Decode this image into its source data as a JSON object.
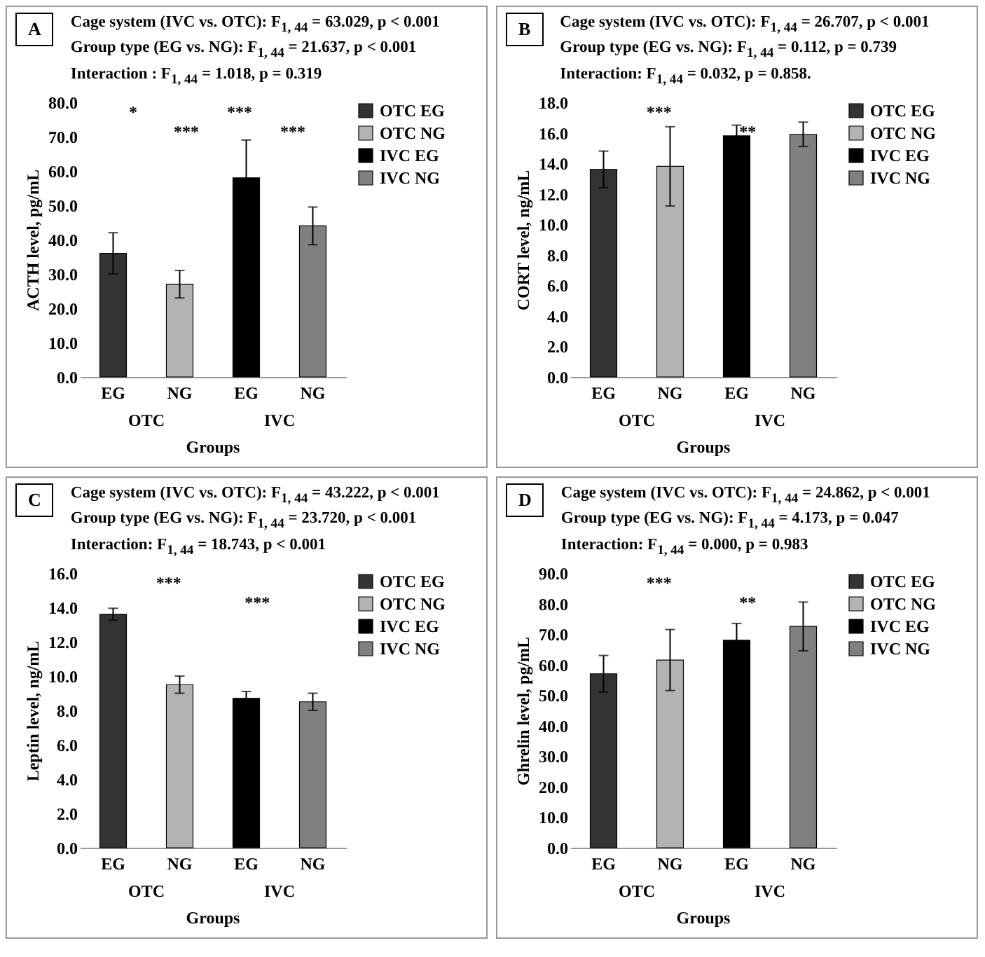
{
  "chart_data": [
    {
      "type": "bar",
      "title": "A",
      "subtitle": "Cage system (IVC vs. OTC): F$_{1, 44}$ = 63.029, p < 0.001\nGroup type (EG vs. NG): F$_{1, 44}$ = 21.637, p < 0.001\nInteraction : F$_{1, 44}$ = 1.018, p = 0.319",
      "ylabel": "ACTH level, pg/mL",
      "xlabel": "Groups",
      "categories": [
        "EG",
        "NG",
        "EG",
        "NG"
      ],
      "series": [
        {
          "name": "OTC EG",
          "color": "#333333",
          "values": [
            36.0,
            null,
            null,
            null
          ],
          "errors": [
            6.0,
            null,
            null,
            null
          ]
        },
        {
          "name": "OTC NG",
          "color": "#b3b3b3",
          "values": [
            null,
            27.0,
            null,
            null
          ],
          "errors": [
            null,
            4.0,
            null,
            null
          ]
        },
        {
          "name": "IVC EG",
          "color": "#000000",
          "values": [
            null,
            null,
            58.0,
            null
          ],
          "errors": [
            null,
            null,
            11.0,
            null
          ]
        },
        {
          "name": "IVC NG",
          "color": "#808080",
          "values": [
            null,
            null,
            null,
            44.0
          ],
          "errors": [
            null,
            null,
            null,
            5.5
          ]
        }
      ],
      "ylim": [
        0,
        80
      ],
      "yticks": [
        {
          "value": 0,
          "label": "0.0"
        },
        {
          "value": 10,
          "label": "10.0"
        },
        {
          "value": 20,
          "label": "20.0"
        },
        {
          "value": 30,
          "label": "30.0"
        },
        {
          "value": 40,
          "label": "40.0"
        },
        {
          "value": 50,
          "label": "50.0"
        },
        {
          "value": 60,
          "label": "60.0"
        },
        {
          "value": 70,
          "label": "70.0"
        },
        {
          "value": 80,
          "label": "80.0"
        }
      ],
      "legend": "right",
      "annotations": [
        {
          "text": "*"
        },
        {
          "text": "***"
        },
        {
          "text": "***"
        },
        {
          "text": "***"
        },
        "OTC",
        "IVC"
      ]
    },
    {
      "type": "bar",
      "title": "B",
      "subtitle": "Cage system (IVC vs. OTC): F$_{1, 44}$ = 26.707, p < 0.001\nGroup type (EG vs. NG): F$_{1, 44}$ = 0.112, p = 0.739\nInteraction: F$_{1, 44}$ = 0.032, p = 0.858.",
      "ylabel": "CORT level, ng/mL",
      "xlabel": "Groups",
      "categories": [
        "EG",
        "NG",
        "EG",
        "NG"
      ],
      "series": [
        {
          "name": "OTC EG",
          "color": "#333333",
          "values": [
            13.6,
            null,
            null,
            null
          ],
          "errors": [
            1.2,
            null,
            null,
            null
          ]
        },
        {
          "name": "OTC NG",
          "color": "#b3b3b3",
          "values": [
            null,
            13.8,
            null,
            null
          ],
          "errors": [
            null,
            2.6,
            null,
            null
          ]
        },
        {
          "name": "IVC EG",
          "color": "#000000",
          "values": [
            null,
            null,
            15.8,
            null
          ],
          "errors": [
            null,
            null,
            0.7,
            null
          ]
        },
        {
          "name": "IVC NG",
          "color": "#808080",
          "values": [
            null,
            null,
            null,
            15.9
          ],
          "errors": [
            null,
            null,
            null,
            0.8
          ]
        }
      ],
      "ylim": [
        0,
        18
      ],
      "yticks": [
        {
          "value": 0,
          "label": "0.0"
        },
        {
          "value": 2,
          "label": "2.0"
        },
        {
          "value": 4,
          "label": "4.0"
        },
        {
          "value": 6,
          "label": "6.0"
        },
        {
          "value": 8,
          "label": "8.0"
        },
        {
          "value": 10,
          "label": "10.0"
        },
        {
          "value": 12,
          "label": "12.0"
        },
        {
          "value": 14,
          "label": "14.0"
        },
        {
          "value": 16,
          "label": "16.0"
        },
        {
          "value": 18,
          "label": "18.0"
        }
      ],
      "legend": "right",
      "annotations": [
        {
          "text": "***"
        },
        {
          "text": "**"
        },
        "OTC",
        "IVC"
      ]
    },
    {
      "type": "bar",
      "title": "C",
      "subtitle": "Cage system (IVC vs. OTC): F$_{1, 44}$ = 43.222, p < 0.001\nGroup type (EG vs. NG): F$_{1, 44}$ = 23.720, p < 0.001\nInteraction: F$_{1, 44}$ = 18.743, p < 0.001",
      "ylabel": "Leptin level, ng/mL",
      "xlabel": "Groups",
      "categories": [
        "EG",
        "NG",
        "EG",
        "NG"
      ],
      "series": [
        {
          "name": "OTC EG",
          "color": "#333333",
          "values": [
            13.6,
            null,
            null,
            null
          ],
          "errors": [
            0.35,
            null,
            null,
            null
          ]
        },
        {
          "name": "OTC NG",
          "color": "#b3b3b3",
          "values": [
            null,
            9.5,
            null,
            null
          ],
          "errors": [
            null,
            0.5,
            null,
            null
          ]
        },
        {
          "name": "IVC EG",
          "color": "#000000",
          "values": [
            null,
            null,
            8.7,
            null
          ],
          "errors": [
            null,
            null,
            0.4,
            null
          ]
        },
        {
          "name": "IVC NG",
          "color": "#808080",
          "values": [
            null,
            null,
            null,
            8.5
          ],
          "errors": [
            null,
            null,
            null,
            0.5
          ]
        }
      ],
      "ylim": [
        0,
        16
      ],
      "yticks": [
        {
          "value": 0,
          "label": "0.0"
        },
        {
          "value": 2,
          "label": "2.0"
        },
        {
          "value": 4,
          "label": "4.0"
        },
        {
          "value": 6,
          "label": "6.0"
        },
        {
          "value": 8,
          "label": "8.0"
        },
        {
          "value": 10,
          "label": "10.0"
        },
        {
          "value": 12,
          "label": "12.0"
        },
        {
          "value": 14,
          "label": "14.0"
        },
        {
          "value": 16,
          "label": "16.0"
        }
      ],
      "legend": "right",
      "annotations": [
        {
          "text": "***"
        },
        {
          "text": "***"
        },
        "OTC",
        "IVC"
      ]
    },
    {
      "type": "bar",
      "title": "D",
      "subtitle": "Cage system (IVC vs. OTC): F$_{1, 44}$ = 24.862, p < 0.001\nGroup type (EG vs. NG): F$_{1, 44}$ = 4.173, p = 0.047\nInteraction: F$_{1, 44}$ = 0.000, p = 0.983",
      "ylabel": "Ghrelin level, pg/mL",
      "xlabel": "Groups",
      "categories": [
        "EG",
        "NG",
        "EG",
        "NG"
      ],
      "series": [
        {
          "name": "OTC EG",
          "color": "#333333",
          "values": [
            57.0,
            null,
            null,
            null
          ],
          "errors": [
            6.0,
            null,
            null,
            null
          ]
        },
        {
          "name": "OTC NG",
          "color": "#b3b3b3",
          "values": [
            null,
            61.5,
            null,
            null
          ],
          "errors": [
            null,
            10.0,
            null,
            null
          ]
        },
        {
          "name": "IVC EG",
          "color": "#000000",
          "values": [
            null,
            null,
            68.0,
            null
          ],
          "errors": [
            null,
            null,
            5.5,
            null
          ]
        },
        {
          "name": "IVC NG",
          "color": "#808080",
          "values": [
            null,
            null,
            null,
            72.5
          ],
          "errors": [
            null,
            null,
            null,
            8.0
          ]
        }
      ],
      "ylim": [
        0,
        90
      ],
      "yticks": [
        {
          "value": 0,
          "label": "0.0"
        },
        {
          "value": 10,
          "label": "10.0"
        },
        {
          "value": 20,
          "label": "20.0"
        },
        {
          "value": 30,
          "label": "30.0"
        },
        {
          "value": 40,
          "label": "40.0"
        },
        {
          "value": 50,
          "label": "50.0"
        },
        {
          "value": 60,
          "label": "60.0"
        },
        {
          "value": 70,
          "label": "70.0"
        },
        {
          "value": 80,
          "label": "80.0"
        },
        {
          "value": 90,
          "label": "90.0"
        }
      ],
      "legend": "right",
      "annotations": [
        {
          "text": "***"
        },
        {
          "text": "**"
        },
        "OTC",
        "IVC"
      ]
    }
  ]
}
